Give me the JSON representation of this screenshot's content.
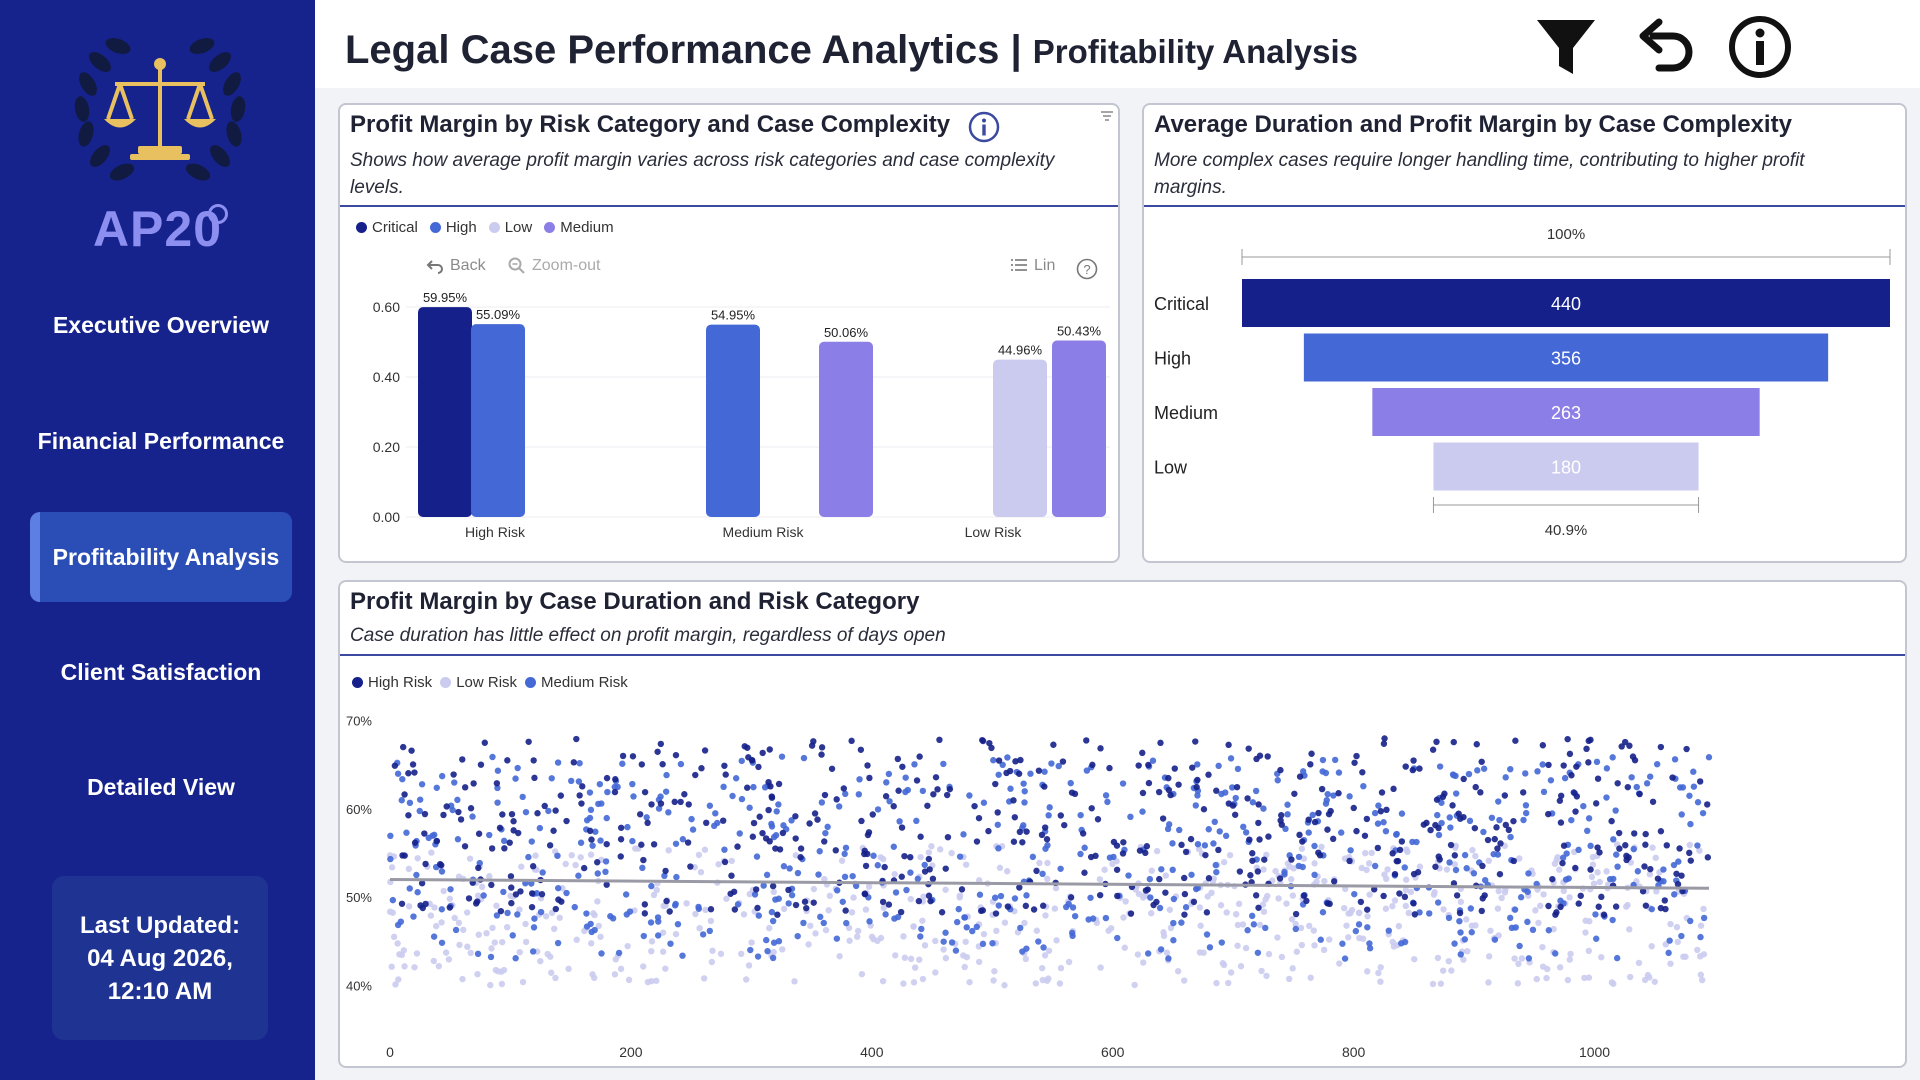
{
  "sidebar": {
    "brand": "AP20",
    "nav": [
      {
        "label": "Executive Overview"
      },
      {
        "label": "Financial Performance"
      },
      {
        "label": "Profitability Analysis"
      },
      {
        "label": "Client Satisfaction"
      },
      {
        "label": "Detailed View"
      }
    ],
    "active_index": 2,
    "last_updated_label": "Last Updated:",
    "last_updated_date": "04 Aug 2026,",
    "last_updated_time": "12:10 AM"
  },
  "header": {
    "title": "Legal Case Performance Analytics |",
    "subtitle": "Profitability Analysis",
    "icons": [
      "filter-icon",
      "undo-icon",
      "info-icon"
    ]
  },
  "panel1": {
    "title": "Profit Margin by Risk Category and Case Complexity",
    "description": "Shows how average profit margin varies across risk categories and case complexity levels.",
    "tools": {
      "back": "Back",
      "zoom_out": "Zoom-out",
      "lin": "Lin"
    }
  },
  "panel2": {
    "title": "Average Duration and Profit Margin by Case Complexity",
    "description": "More complex cases require longer handling time, contributing to higher profit margins.",
    "top_label": "100%",
    "bottom_label": "40.9%"
  },
  "panel3": {
    "title": "Profit Margin by Case Duration and Risk Category",
    "description": "Case duration has little effect on profit margin, regardless of days open"
  },
  "colors": {
    "critical": "#15208a",
    "high": "#4468d6",
    "medium": "#8b7ee6",
    "low": "#cbcbef",
    "sidebar": "#16238c",
    "trend": "#9a9aa6"
  },
  "chart_data": [
    {
      "type": "bar",
      "legend": [
        "Critical",
        "High",
        "Low",
        "Medium"
      ],
      "categories": [
        "High Risk",
        "Medium Risk",
        "Low Risk"
      ],
      "ylim": [
        0,
        0.6
      ],
      "yticks": [
        "0.00",
        "0.20",
        "0.40",
        "0.60"
      ],
      "bars": [
        {
          "category": "High Risk",
          "series": "Critical",
          "value": 0.5995,
          "label": "59.95%"
        },
        {
          "category": "High Risk",
          "series": "High",
          "value": 0.5509,
          "label": "55.09%"
        },
        {
          "category": "Medium Risk",
          "series": "High",
          "value": 0.5495,
          "label": "54.95%"
        },
        {
          "category": "Medium Risk",
          "series": "Medium",
          "value": 0.5006,
          "label": "50.06%"
        },
        {
          "category": "Low Risk",
          "series": "Low",
          "value": 0.4496,
          "label": "44.96%"
        },
        {
          "category": "Low Risk",
          "series": "Medium",
          "value": 0.5043,
          "label": "50.43%"
        }
      ]
    },
    {
      "type": "bar",
      "subtype": "funnel",
      "categories": [
        "Critical",
        "High",
        "Medium",
        "Low"
      ],
      "values": [
        440,
        356,
        263,
        180
      ],
      "labels": [
        "440",
        "356",
        "263",
        "180"
      ]
    },
    {
      "type": "scatter",
      "legend": [
        "High Risk",
        "Low Risk",
        "Medium Risk"
      ],
      "xlim": [
        0,
        1100
      ],
      "ylim": [
        0.38,
        0.72
      ],
      "xticks": [
        "0",
        "200",
        "400",
        "600",
        "800",
        "1000"
      ],
      "yticks": [
        "40%",
        "50%",
        "60%",
        "70%"
      ],
      "series": [
        {
          "name": "High Risk",
          "y_range": [
            0.48,
            0.68
          ],
          "x_range": [
            0,
            1095
          ]
        },
        {
          "name": "Medium Risk",
          "y_range": [
            0.43,
            0.66
          ],
          "x_range": [
            0,
            1095
          ]
        },
        {
          "name": "Low Risk",
          "y_range": [
            0.4,
            0.56
          ],
          "x_range": [
            0,
            1095
          ]
        }
      ],
      "trend": {
        "y_start": 0.52,
        "y_end": 0.51
      }
    }
  ]
}
